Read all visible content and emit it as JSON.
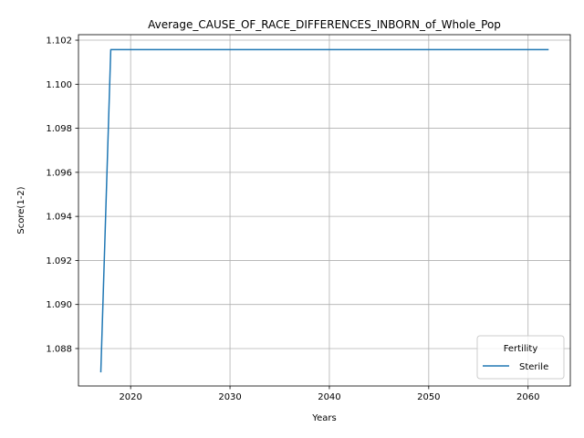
{
  "chart_data": {
    "type": "line",
    "title": "Average_CAUSE_OF_RACE_DIFFERENCES_INBORN_of_Whole_Pop",
    "xlabel": "Years",
    "ylabel": "Score(1-2)",
    "xlim": [
      2014.75,
      2064.25
    ],
    "ylim": [
      1.0863,
      1.10225
    ],
    "xticks": [
      2020,
      2030,
      2040,
      2050,
      2060
    ],
    "yticks": [
      1.088,
      1.09,
      1.092,
      1.094,
      1.096,
      1.098,
      1.1,
      1.102
    ],
    "ytick_labels": [
      "1.088",
      "1.090",
      "1.092",
      "1.094",
      "1.096",
      "1.098",
      "1.100",
      "1.102"
    ],
    "grid": true,
    "legend": {
      "title": "Fertility",
      "placement": "lower-right"
    },
    "series": [
      {
        "name": "Sterile",
        "color": "#1f77b4",
        "x": [
          2017,
          2018,
          2019,
          2020,
          2021,
          2022,
          2023,
          2024,
          2025,
          2026,
          2027,
          2028,
          2029,
          2030,
          2031,
          2032,
          2033,
          2034,
          2035,
          2036,
          2037,
          2038,
          2039,
          2040,
          2041,
          2042,
          2043,
          2044,
          2045,
          2046,
          2047,
          2048,
          2049,
          2050,
          2051,
          2052,
          2053,
          2054,
          2055,
          2056,
          2057,
          2058,
          2059,
          2060,
          2061,
          2062
        ],
        "y": [
          1.08695,
          1.10157,
          1.10157,
          1.10157,
          1.10157,
          1.10157,
          1.10157,
          1.10157,
          1.10157,
          1.10157,
          1.10157,
          1.10157,
          1.10157,
          1.10157,
          1.10157,
          1.10157,
          1.10157,
          1.10157,
          1.10157,
          1.10157,
          1.10157,
          1.10157,
          1.10157,
          1.10157,
          1.10157,
          1.10157,
          1.10157,
          1.10157,
          1.10157,
          1.10157,
          1.10157,
          1.10157,
          1.10157,
          1.10157,
          1.10157,
          1.10157,
          1.10157,
          1.10157,
          1.10157,
          1.10157,
          1.10157,
          1.10157,
          1.10157,
          1.10157,
          1.10157,
          1.10157
        ]
      }
    ]
  }
}
